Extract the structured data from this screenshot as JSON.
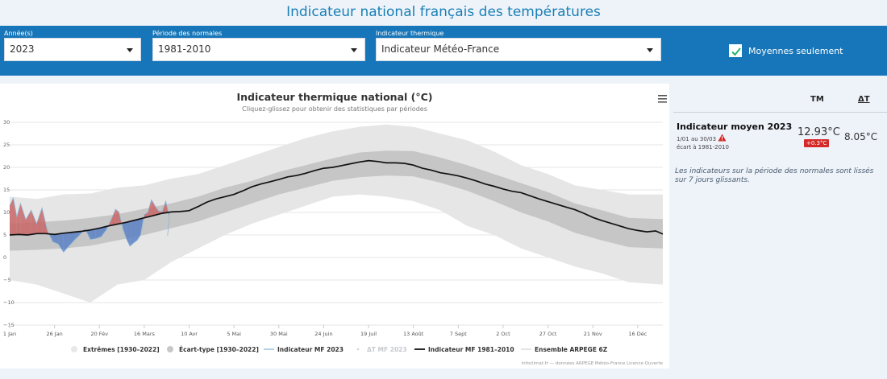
{
  "page": {
    "title": "Indicateur national français des températures"
  },
  "filters": {
    "year": {
      "label": "Année(s)",
      "value": "2023"
    },
    "normals": {
      "label": "Période des normales",
      "value": "1981-2010"
    },
    "indicator": {
      "label": "Indicateur thermique",
      "value": "Indicateur Météo-France"
    },
    "average_only": {
      "label": "Moyennes seulement",
      "checked": true
    }
  },
  "chart": {
    "menu_icon": "hamburger-icon",
    "credits": "infoclimat.fr — données ARPEGE Météo-France Licence Ouverte"
  },
  "chart_data": {
    "type": "area",
    "title": "Indicateur thermique national (°C)",
    "subtitle": "Cliquez-glissez pour obtenir des statistiques par périodes",
    "ylim": [
      -15,
      30
    ],
    "y_ticks": [
      "30",
      "25",
      "20",
      "15",
      "10",
      "5",
      "0",
      "−5",
      "−10",
      "−15"
    ],
    "x_ticks": [
      "1 Jan",
      "26 Jan",
      "20 Fév",
      "16 Mars",
      "10 Avr",
      "5 Mai",
      "30 Mai",
      "24 Juin",
      "19 Juil",
      "13 Août",
      "7 Sept",
      "2 Oct",
      "27 Oct",
      "21 Nov",
      "16 Déc"
    ],
    "grid": true,
    "legend_position": "bottom",
    "legend": [
      {
        "name": "Extrêmes [1930–2022]",
        "color": "#e8e8e8"
      },
      {
        "name": "Écart-type [1930–2022]",
        "color": "#c8c8c8"
      },
      {
        "name": "Indicateur MF 2023",
        "color": "#7fb3d5"
      },
      {
        "name": "ΔT MF 2023",
        "color": "#cfd3d8"
      },
      {
        "name": "Indicateur MF 1981–2010",
        "color": "#111111"
      },
      {
        "name": "Ensemble ARPEGE 6Z",
        "color": "#cfd3d8"
      }
    ],
    "series": [
      {
        "name": "Indicateur MF 1981–2010",
        "points": [
          [
            0,
            5.0
          ],
          [
            5,
            5.1
          ],
          [
            10,
            5.0
          ],
          [
            15,
            5.3
          ],
          [
            20,
            5.3
          ],
          [
            25,
            5.1
          ],
          [
            30,
            5.4
          ],
          [
            35,
            5.6
          ],
          [
            40,
            5.8
          ],
          [
            45,
            6.1
          ],
          [
            50,
            6.5
          ],
          [
            55,
            7.0
          ],
          [
            60,
            7.4
          ],
          [
            65,
            7.8
          ],
          [
            70,
            8.3
          ],
          [
            75,
            8.8
          ],
          [
            80,
            9.3
          ],
          [
            85,
            9.8
          ],
          [
            90,
            10.1
          ],
          [
            95,
            10.2
          ],
          [
            100,
            10.4
          ],
          [
            105,
            11.3
          ],
          [
            110,
            12.3
          ],
          [
            115,
            13.0
          ],
          [
            120,
            13.5
          ],
          [
            125,
            14.0
          ],
          [
            130,
            14.8
          ],
          [
            135,
            15.7
          ],
          [
            140,
            16.3
          ],
          [
            145,
            16.8
          ],
          [
            150,
            17.3
          ],
          [
            155,
            17.9
          ],
          [
            160,
            18.2
          ],
          [
            165,
            18.7
          ],
          [
            170,
            19.3
          ],
          [
            175,
            19.8
          ],
          [
            180,
            20.0
          ],
          [
            185,
            20.4
          ],
          [
            190,
            20.8
          ],
          [
            195,
            21.2
          ],
          [
            200,
            21.5
          ],
          [
            205,
            21.3
          ],
          [
            210,
            21.0
          ],
          [
            215,
            21.0
          ],
          [
            220,
            20.9
          ],
          [
            225,
            20.5
          ],
          [
            230,
            19.8
          ],
          [
            235,
            19.4
          ],
          [
            240,
            18.8
          ],
          [
            245,
            18.5
          ],
          [
            250,
            18.1
          ],
          [
            255,
            17.6
          ],
          [
            260,
            17.0
          ],
          [
            265,
            16.3
          ],
          [
            270,
            15.8
          ],
          [
            275,
            15.2
          ],
          [
            280,
            14.7
          ],
          [
            285,
            14.4
          ],
          [
            290,
            13.7
          ],
          [
            295,
            13.0
          ],
          [
            300,
            12.4
          ],
          [
            305,
            11.8
          ],
          [
            310,
            11.2
          ],
          [
            315,
            10.6
          ],
          [
            320,
            9.8
          ],
          [
            325,
            8.9
          ],
          [
            330,
            8.2
          ],
          [
            335,
            7.6
          ],
          [
            340,
            7.0
          ],
          [
            345,
            6.4
          ],
          [
            350,
            6.0
          ],
          [
            355,
            5.7
          ],
          [
            360,
            5.9
          ],
          [
            364,
            5.2
          ]
        ]
      },
      {
        "name": "Indicateur MF 2023",
        "points": [
          [
            0,
            11.5
          ],
          [
            2,
            13.2
          ],
          [
            4,
            9.0
          ],
          [
            6,
            12.0
          ],
          [
            9,
            8.4
          ],
          [
            12,
            10.5
          ],
          [
            15,
            7.5
          ],
          [
            18,
            11.0
          ],
          [
            21,
            6.0
          ],
          [
            24,
            3.5
          ],
          [
            27,
            3.0
          ],
          [
            30,
            1.2
          ],
          [
            33,
            2.5
          ],
          [
            36,
            3.8
          ],
          [
            39,
            5.0
          ],
          [
            42,
            6.4
          ],
          [
            45,
            4.0
          ],
          [
            48,
            4.2
          ],
          [
            51,
            4.6
          ],
          [
            54,
            6.2
          ],
          [
            57,
            8.8
          ],
          [
            59,
            10.7
          ],
          [
            61,
            10.0
          ],
          [
            63,
            6.5
          ],
          [
            65,
            4.2
          ],
          [
            67,
            2.5
          ],
          [
            69,
            3.2
          ],
          [
            71,
            3.8
          ],
          [
            73,
            5.0
          ],
          [
            75,
            9.5
          ],
          [
            77,
            10.0
          ],
          [
            79,
            12.8
          ],
          [
            81,
            11.5
          ],
          [
            83,
            10.3
          ],
          [
            85,
            10.2
          ],
          [
            87,
            12.5
          ],
          [
            89,
            9.0
          ],
          [
            88,
            4.8
          ]
        ]
      }
    ],
    "bands": [
      {
        "name": "Extrêmes [1930–2022]",
        "x": [
          0,
          15,
          30,
          45,
          60,
          75,
          90,
          105,
          120,
          135,
          150,
          165,
          180,
          195,
          210,
          225,
          240,
          255,
          270,
          285,
          300,
          315,
          330,
          345,
          364
        ],
        "upper": [
          13.5,
          13.0,
          14.0,
          14.2,
          15.5,
          16.0,
          17.5,
          18.5,
          20.5,
          22.5,
          24.5,
          26.5,
          28.0,
          29.0,
          29.5,
          29.0,
          27.5,
          26.0,
          23.5,
          20.5,
          18.5,
          16.0,
          15.0,
          14.0,
          14.0
        ],
        "lower": [
          -5.0,
          -6.0,
          -8.0,
          -10.0,
          -6.0,
          -5.0,
          -1.0,
          2.0,
          5.0,
          7.5,
          9.5,
          11.5,
          13.5,
          14.0,
          13.5,
          12.5,
          10.5,
          7.0,
          5.0,
          2.0,
          0.0,
          -2.0,
          -3.5,
          -5.5,
          -6.0
        ]
      },
      {
        "name": "Écart-type [1930–2022]",
        "x": [
          0,
          15,
          30,
          45,
          60,
          75,
          90,
          105,
          120,
          135,
          150,
          165,
          180,
          195,
          210,
          225,
          240,
          255,
          270,
          285,
          300,
          315,
          330,
          345,
          364
        ],
        "upper": [
          7.5,
          7.8,
          8.2,
          8.8,
          9.6,
          10.8,
          12.0,
          13.5,
          15.5,
          17.0,
          19.0,
          20.5,
          22.0,
          23.3,
          23.7,
          23.6,
          22.2,
          20.5,
          18.5,
          16.5,
          14.5,
          12.0,
          10.5,
          8.8,
          8.5
        ],
        "lower": [
          1.5,
          1.7,
          2.0,
          2.6,
          3.8,
          5.0,
          6.5,
          8.0,
          10.0,
          12.0,
          14.0,
          15.5,
          17.0,
          17.8,
          18.2,
          18.0,
          16.6,
          14.8,
          12.5,
          10.0,
          8.0,
          5.5,
          3.8,
          2.3,
          2.0
        ]
      }
    ]
  },
  "summary": {
    "col_tm": "TM",
    "col_dt": "ΔT",
    "title": "Indicateur moyen 2023",
    "period": "1/01 au 30/03",
    "warning_icon": "warning-icon",
    "baseline": "écart à 1981-2010",
    "tm_value": "12.93°C",
    "tm_badge": "+0.3°C",
    "dt_value": "8.05°C",
    "note": "Les indicateurs sur la période des normales sont lissés sur 7 jours glissants."
  }
}
